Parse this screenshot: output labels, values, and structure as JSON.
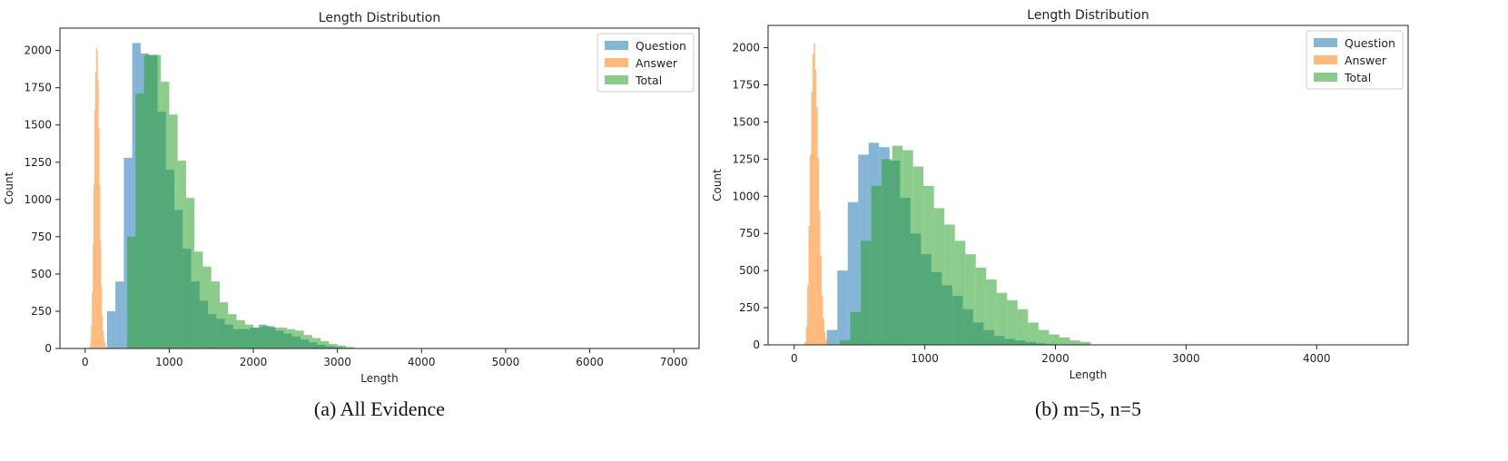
{
  "chart_data": [
    {
      "type": "histogram",
      "title": "Length Distribution",
      "xlabel": "Length",
      "ylabel": "Count",
      "caption": "(a) All Evidence",
      "xlim": [
        -300,
        7300
      ],
      "ylim": [
        0,
        2150
      ],
      "xticks": [
        0,
        1000,
        2000,
        3000,
        4000,
        5000,
        6000,
        7000
      ],
      "yticks": [
        0,
        250,
        500,
        750,
        1000,
        1250,
        1500,
        1750,
        2000
      ],
      "legend_position": "top-right",
      "series": [
        {
          "name": "Question",
          "color": "#1f77b4",
          "bin_start": 260,
          "bin_width": 100,
          "values": [
            250,
            450,
            1280,
            2050,
            1980,
            1970,
            1590,
            1200,
            930,
            670,
            450,
            320,
            230,
            200,
            160,
            130,
            130,
            140,
            160,
            150,
            120,
            100,
            80,
            60,
            40,
            25,
            15,
            10
          ]
        },
        {
          "name": "Answer",
          "color": "#ff7f0e",
          "bin_start": 50,
          "bin_width": 10,
          "values": [
            10,
            40,
            150,
            380,
            700,
            1100,
            1600,
            1850,
            2020,
            2000,
            1800,
            1480,
            1100,
            720,
            420,
            220,
            120,
            70,
            40,
            20,
            10,
            5
          ]
        },
        {
          "name": "Total",
          "color": "#2ca02c",
          "bin_start": 500,
          "bin_width": 100,
          "values": [
            750,
            1710,
            1970,
            1970,
            1790,
            1570,
            1260,
            1010,
            650,
            550,
            450,
            310,
            230,
            190,
            160,
            140,
            150,
            140,
            140,
            130,
            120,
            90,
            70,
            50,
            30,
            20,
            10
          ]
        }
      ]
    },
    {
      "type": "histogram",
      "title": "Length Distribution",
      "xlabel": "Length",
      "ylabel": "Count",
      "caption": "(b) m=5, n=5",
      "xlim": [
        -200,
        4700
      ],
      "ylim": [
        0,
        2150
      ],
      "xticks": [
        0,
        1000,
        2000,
        3000,
        4000
      ],
      "yticks": [
        0,
        250,
        500,
        750,
        1000,
        1250,
        1500,
        1750,
        2000
      ],
      "legend_position": "top-right",
      "series": [
        {
          "name": "Question",
          "color": "#1f77b4",
          "bin_start": 250,
          "bin_width": 80,
          "values": [
            100,
            500,
            960,
            1280,
            1360,
            1330,
            1240,
            990,
            750,
            610,
            490,
            400,
            330,
            240,
            150,
            100,
            60,
            40,
            30,
            20,
            10,
            5
          ]
        },
        {
          "name": "Answer",
          "color": "#ff7f0e",
          "bin_start": 80,
          "bin_width": 10,
          "values": [
            20,
            120,
            400,
            800,
            1280,
            1700,
            1960,
            2030,
            1850,
            1600,
            1260,
            900,
            600,
            330,
            180,
            90,
            40,
            15
          ]
        },
        {
          "name": "Total",
          "color": "#2ca02c",
          "bin_start": 350,
          "bin_width": 80,
          "values": [
            30,
            220,
            700,
            1070,
            1250,
            1340,
            1310,
            1200,
            1070,
            920,
            810,
            700,
            610,
            520,
            440,
            350,
            300,
            240,
            150,
            100,
            70,
            50,
            30,
            20
          ]
        }
      ]
    }
  ]
}
